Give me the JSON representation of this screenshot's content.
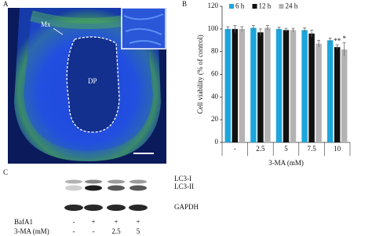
{
  "chart_data": {
    "type": "bar",
    "y_label": "Cell viability (% of control)",
    "x_label": "3-MA (mM)",
    "categories": [
      "-",
      "2.5",
      "5",
      "7.5",
      "10"
    ],
    "series": [
      {
        "name": "6 h",
        "color": "#1ea6dc",
        "values": [
          100,
          101,
          100,
          99,
          90
        ],
        "errors": [
          2,
          2,
          1.5,
          2,
          2
        ]
      },
      {
        "name": "12 h",
        "color": "#111111",
        "values": [
          100,
          97,
          99,
          96,
          84
        ],
        "errors": [
          3,
          3,
          1.5,
          3,
          2
        ]
      },
      {
        "name": "24 h",
        "color": "#b3b3b3",
        "values": [
          100,
          101,
          99,
          87,
          82
        ],
        "errors": [
          2,
          2,
          1.5,
          3,
          6
        ]
      }
    ],
    "ylim": [
      0,
      120
    ],
    "yticks": [
      0,
      20,
      40,
      60,
      80,
      100,
      120
    ],
    "legend": "top",
    "annotations": [
      "**",
      "*"
    ]
  },
  "panel_labels": [
    "A",
    "B",
    "C"
  ],
  "image_labels": [
    "Mx",
    "DP"
  ],
  "blot": {
    "bands": [
      "LC3-I",
      "LC3-II",
      "GAPDH"
    ],
    "rows": [
      {
        "name": "BafA1",
        "cells": [
          "-",
          "+",
          "+",
          "+"
        ]
      },
      {
        "name": "3-MA (mM)",
        "cells": [
          "-",
          "-",
          "2.5",
          "5"
        ]
      }
    ]
  }
}
